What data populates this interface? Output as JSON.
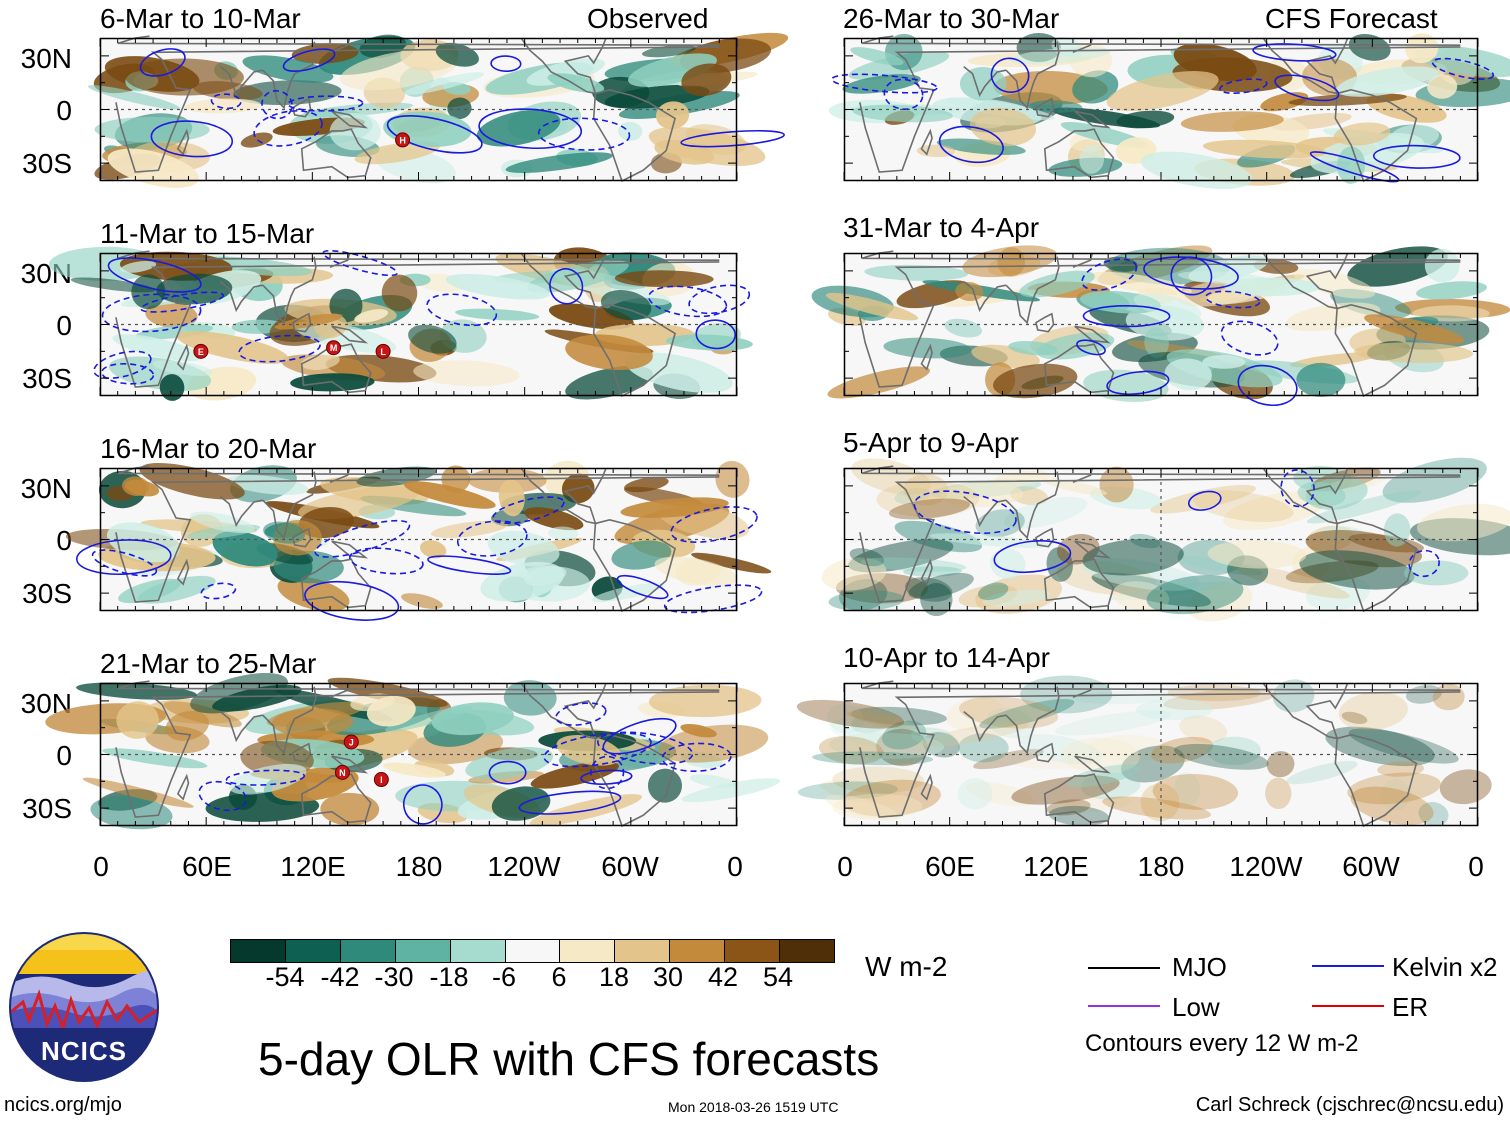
{
  "colors": {
    "green_dark": "#0a4a3a",
    "green_mid": "#2f8a7c",
    "green_light": "#8fd0c0",
    "green_pale": "#cdeee6",
    "tan_pale": "#f6e9c6",
    "tan_light": "#e3c48a",
    "tan_mid": "#c38a3c",
    "tan_dark": "#7a4a12",
    "kelvin_blue": "#1a1ae0",
    "coast_gray": "#6e6e6e",
    "mjo_black": "#000000",
    "low_purple": "#9b30d9",
    "er_red": "#e00000"
  },
  "lat_labels": [
    "30N",
    "0",
    "30S"
  ],
  "lon_labels": [
    "0",
    "60E",
    "120E",
    "180",
    "120W",
    "60W",
    "0"
  ],
  "observed_label": "Observed",
  "forecast_label": "CFS Forecast",
  "left_panels": [
    {
      "title": "6-Mar to 10-Mar",
      "markers": [
        "H"
      ]
    },
    {
      "title": "11-Mar to 15-Mar",
      "markers": [
        "E",
        "M",
        "L"
      ]
    },
    {
      "title": "16-Mar to 20-Mar",
      "markers": []
    },
    {
      "title": "21-Mar to 25-Mar",
      "markers": [
        "J",
        "N",
        "I"
      ]
    }
  ],
  "right_panels": [
    {
      "title": "26-Mar to 30-Mar"
    },
    {
      "title": "31-Mar to 4-Apr"
    },
    {
      "title": "5-Apr to 9-Apr"
    },
    {
      "title": "10-Apr to 14-Apr"
    }
  ],
  "colorbar": {
    "ticks": [
      "-54",
      "-42",
      "-30",
      "-18",
      "-6",
      "6",
      "18",
      "30",
      "42",
      "54"
    ],
    "colors": [
      "#05392d",
      "#0e6152",
      "#2f8a7c",
      "#5eb3a3",
      "#a6dccf",
      "#f7f7f7",
      "#f6e9c6",
      "#e3c48a",
      "#c38a3c",
      "#8a5516",
      "#4f2f08"
    ],
    "units": "W m-2"
  },
  "title": "5-day OLR with CFS forecasts",
  "legend": {
    "mjo": "MJO",
    "kelvin": "Kelvin x2",
    "low": "Low",
    "er": "ER",
    "contour_note": "Contours every 12 W m-2"
  },
  "logo_text": "NCICS",
  "site_url": "ncics.org/mjo",
  "timestamp": "Mon 2018-03-26 1519 UTC",
  "credit": "Carl Schreck (cjschrec@ncsu.edu)"
}
